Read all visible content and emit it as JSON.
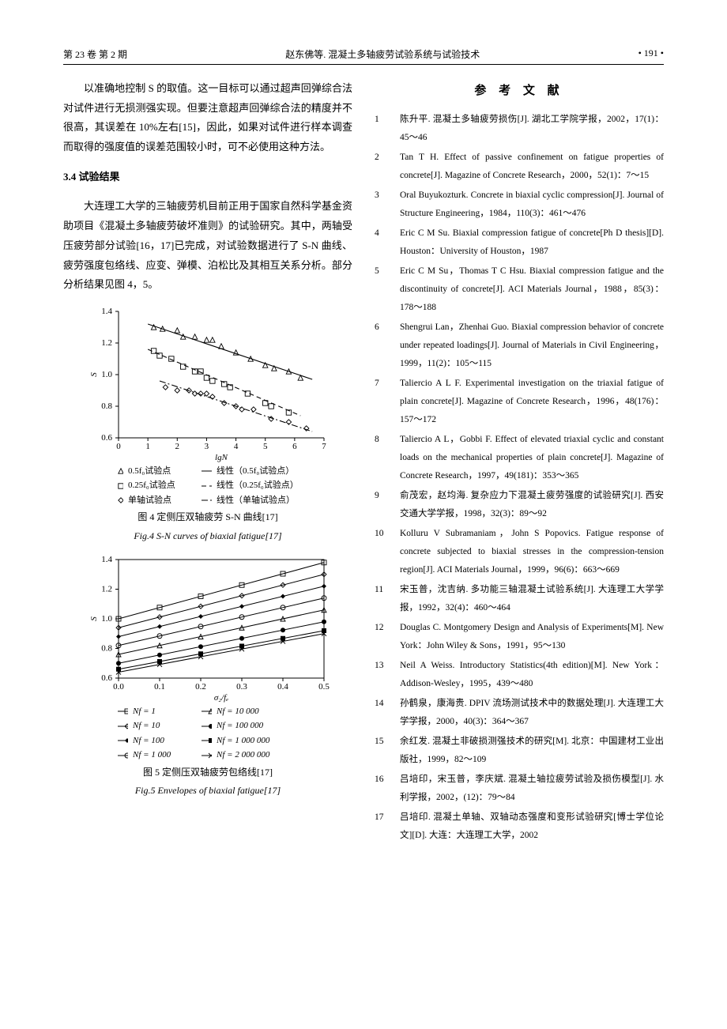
{
  "header": {
    "left": "第 23 卷   第 2 期",
    "center": "赵东佛等. 混凝土多轴疲劳试验系统与试验技术",
    "right": "• 191 •"
  },
  "left_column": {
    "para1": "以准确地控制 S 的取值。这一目标可以通过超声回弹综合法对试件进行无损测强实现。但要注意超声回弹综合法的精度并不很高，其误差在 10%左右[15]，因此，如果对试件进行样本调查而取得的强度值的误差范围较小时，可不必使用这种方法。",
    "sec34": "3.4  试验结果",
    "para2": "大连理工大学的三轴疲劳机目前正用于国家自然科学基金资助项目《混凝土多轴疲劳破坏准则》的试验研究。其中，两轴受压疲劳部分试验[16，17]已完成，对试验数据进行了 S-N 曲线、疲劳强度包络线、应变、弹模、泊松比及其相互关系分析。部分分析结果见图 4，5。",
    "fig4": {
      "type": "scatter-line",
      "xlabel": "lgN",
      "ylabel": "S",
      "xlim": [
        0,
        7
      ],
      "ylim": [
        0.6,
        1.4
      ],
      "xtick_step": 1,
      "ytick_step": 0.2,
      "axis_fontsize": 11,
      "background_color": "#ffffff",
      "axis_color": "#000000",
      "line_color": "#000000",
      "series": [
        {
          "label": "0.5f₀试验点",
          "marker": "triangle",
          "points": [
            [
              1.2,
              1.3
            ],
            [
              1.5,
              1.29
            ],
            [
              2.0,
              1.28
            ],
            [
              2.2,
              1.24
            ],
            [
              2.6,
              1.24
            ],
            [
              3.0,
              1.22
            ],
            [
              3.2,
              1.22
            ],
            [
              3.5,
              1.18
            ],
            [
              4.0,
              1.14
            ],
            [
              4.5,
              1.1
            ],
            [
              5.0,
              1.06
            ],
            [
              5.3,
              1.04
            ],
            [
              5.8,
              1.02
            ],
            [
              6.2,
              0.98
            ]
          ]
        },
        {
          "label": "0.25f₀试验点",
          "marker": "square",
          "points": [
            [
              1.2,
              1.15
            ],
            [
              1.4,
              1.12
            ],
            [
              1.8,
              1.1
            ],
            [
              2.2,
              1.05
            ],
            [
              2.6,
              1.02
            ],
            [
              2.8,
              1.02
            ],
            [
              3.0,
              0.98
            ],
            [
              3.2,
              0.96
            ],
            [
              3.6,
              0.94
            ],
            [
              3.8,
              0.92
            ],
            [
              4.4,
              0.88
            ],
            [
              5.0,
              0.82
            ],
            [
              5.2,
              0.8
            ],
            [
              5.8,
              0.76
            ]
          ]
        },
        {
          "label": "单轴试验点",
          "marker": "diamond",
          "points": [
            [
              1.6,
              0.92
            ],
            [
              2.0,
              0.9
            ],
            [
              2.4,
              0.9
            ],
            [
              2.6,
              0.88
            ],
            [
              2.8,
              0.88
            ],
            [
              3.0,
              0.88
            ],
            [
              3.2,
              0.86
            ],
            [
              3.6,
              0.82
            ],
            [
              4.0,
              0.8
            ],
            [
              4.2,
              0.78
            ],
            [
              4.6,
              0.78
            ],
            [
              5.2,
              0.72
            ],
            [
              5.8,
              0.7
            ],
            [
              6.4,
              0.66
            ]
          ]
        }
      ],
      "fit_lines": [
        {
          "label": "线性（0.5f₀试验点）",
          "dash": "solid",
          "p1": [
            1.0,
            1.32
          ],
          "p2": [
            6.6,
            0.97
          ]
        },
        {
          "label": "线性（0.25f₀试验点）",
          "dash": "dash",
          "p1": [
            1.0,
            1.16
          ],
          "p2": [
            6.2,
            0.74
          ]
        },
        {
          "label": "线性（单轴试验点）",
          "dash": "dashdot",
          "p1": [
            1.4,
            0.96
          ],
          "p2": [
            6.6,
            0.64
          ]
        }
      ],
      "legend_items": [
        {
          "sym": "triangle",
          "label": "0.5f₀试验点"
        },
        {
          "sym": "square",
          "label": "0.25f₀试验点"
        },
        {
          "sym": "diamond",
          "label": "单轴试验点"
        },
        {
          "sym": "line-solid",
          "label": "线性（0.5f₀试验点）"
        },
        {
          "sym": "line-dash",
          "label": "线性（0.25f₀试验点）"
        },
        {
          "sym": "line-dashdot",
          "label": "线性（单轴试验点）"
        }
      ],
      "caption_cn": "图 4   定侧压双轴疲劳 S-N 曲线[17]",
      "caption_en": "Fig.4   S-N curves of biaxial fatigue[17]"
    },
    "fig5": {
      "type": "line",
      "xlabel": "σ₂/fₑ",
      "ylabel": "S",
      "xlim": [
        0.0,
        0.5
      ],
      "ylim": [
        0.6,
        1.4
      ],
      "xtick_step": 0.1,
      "ytick_step": 0.2,
      "axis_fontsize": 11,
      "background_color": "#ffffff",
      "axis_color": "#000000",
      "line_color": "#000000",
      "series": [
        {
          "label": "Nf = 1",
          "marker": "square-open",
          "y0": 1.0,
          "y5": 1.38
        },
        {
          "label": "Nf = 10",
          "marker": "diamond-open",
          "y0": 0.94,
          "y5": 1.3
        },
        {
          "label": "Nf = 100",
          "marker": "diamond-fill",
          "y0": 0.88,
          "y5": 1.22
        },
        {
          "label": "Nf = 1 000",
          "marker": "circle-open",
          "y0": 0.82,
          "y5": 1.14
        },
        {
          "label": "Nf = 10 000",
          "marker": "triangle-open",
          "y0": 0.76,
          "y5": 1.06
        },
        {
          "label": "Nf = 100 000",
          "marker": "circle-fill",
          "y0": 0.7,
          "y5": 0.98
        },
        {
          "label": "Nf = 1 000 000",
          "marker": "square-fill",
          "y0": 0.66,
          "y5": 0.92
        },
        {
          "label": "Nf = 2 000 000",
          "marker": "x",
          "y0": 0.64,
          "y5": 0.9
        }
      ],
      "legend_pairs": [
        [
          {
            "m": "square-open",
            "t": "Nf = 1"
          },
          {
            "m": "triangle-open",
            "t": "Nf = 10 000"
          }
        ],
        [
          {
            "m": "diamond-open",
            "t": "Nf = 10"
          },
          {
            "m": "circle-fill",
            "t": "Nf = 100 000"
          }
        ],
        [
          {
            "m": "diamond-fill",
            "t": "Nf = 100"
          },
          {
            "m": "square-fill",
            "t": "Nf = 1 000 000"
          }
        ],
        [
          {
            "m": "circle-open",
            "t": "Nf = 1 000"
          },
          {
            "m": "x",
            "t": "Nf = 2 000 000"
          }
        ]
      ],
      "caption_cn": "图 5   定侧压双轴疲劳包络线[17]",
      "caption_en": "Fig.5   Envelopes of biaxial fatigue[17]"
    }
  },
  "references": {
    "title": "参 考 文 献",
    "items": [
      "陈升平. 混凝土多轴疲劳损伤[J]. 湖北工学院学报，2002，17(1)：45～46",
      "Tan T H. Effect of passive confinement on fatigue properties of concrete[J]. Magazine of Concrete Research，2000，52(1)：7～15",
      "Oral Buyukozturk. Concrete in biaxial cyclic compression[J]. Journal of Structure Engineering，1984，110(3)：461～476",
      "Eric C M Su. Biaxial compression fatigue of concrete[Ph D thesis][D]. Houston：University of Houston，1987",
      "Eric C M Su，Thomas T C Hsu. Biaxial compression fatigue and the discontinuity of concrete[J]. ACI Materials Journal，1988，85(3)：178～188",
      "Shengrui Lan，Zhenhai Guo. Biaxial compression behavior of concrete under repeated loadings[J]. Journal of Materials in Civil Engineering，1999，11(2)：105～115",
      "Taliercio A L F. Experimental investigation on the triaxial fatigue of plain concrete[J]. Magazine of Concrete Research，1996，48(176)：157～172",
      "Taliercio A L，Gobbi F. Effect of elevated triaxial cyclic and constant loads on the mechanical properties of plain concrete[J]. Magazine of Concrete Research，1997，49(181)：353～365",
      "俞茂宏，赵均海. 复杂应力下混凝土疲劳强度的试验研究[J]. 西安交通大学学报，1998，32(3)：89～92",
      "Kolluru V Subramaniam，John S Popovics. Fatigue response of concrete subjected to biaxial stresses in the compression-tension region[J]. ACI Materials Journal，1999，96(6)：663～669",
      "宋玉普，沈吉纳. 多功能三轴混凝土试验系统[J]. 大连理工大学学报，1992，32(4)：460～464",
      "Douglas C. Montgomery   Design and Analysis of Experiments[M]. New York：John Wiley & Sons，1991，95～130",
      "Neil A Weiss. Introductory Statistics(4th edition)[M]. New York：Addison-Wesley，1995，439～480",
      "孙鹤泉，康海贵. DPIV 流场测试技术中的数据处理[J]. 大连理工大学学报，2000，40(3)：364～367",
      "余红发. 混凝土非破损测强技术的研究[M]. 北京：中国建材工业出版社，1999，82～109",
      "吕培印，宋玉普，李庆斌. 混凝土轴拉疲劳试验及损伤模型[J]. 水利学报，2002，(12)：79～84",
      "吕培印. 混凝土单轴、双轴动态强度和变形试验研究[博士学位论文][D]. 大连：大连理工大学，2002"
    ]
  }
}
